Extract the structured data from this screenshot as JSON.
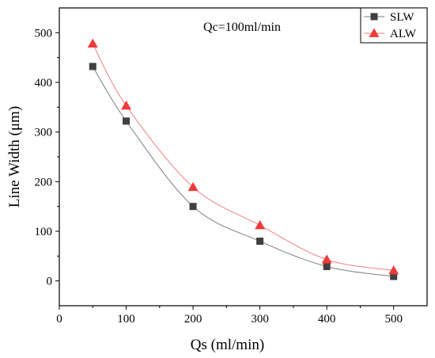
{
  "chart_data": {
    "type": "line",
    "annotation": "Qc=100ml/min",
    "xlabel": "Qs (ml/min)",
    "ylabel": "Line Width (μm)",
    "xlim": [
      0,
      550
    ],
    "ylim": [
      -50,
      550
    ],
    "xticks": [
      0,
      100,
      200,
      300,
      400,
      500
    ],
    "yticks": [
      0,
      100,
      200,
      300,
      400,
      500
    ],
    "grid": false,
    "legend_position": "top-right",
    "series": [
      {
        "name": "SLW",
        "marker": "square",
        "marker_color": "#404040",
        "line_color": "#7f7f7f",
        "x": [
          50,
          100,
          200,
          300,
          400,
          500
        ],
        "y": [
          432,
          322,
          150,
          80,
          29,
          9
        ]
      },
      {
        "name": "ALW",
        "marker": "triangle",
        "marker_color": "#ee3b3b",
        "line_color": "#f08080",
        "x": [
          50,
          100,
          200,
          300,
          400,
          500
        ],
        "y": [
          478,
          353,
          189,
          112,
          43,
          21
        ]
      }
    ]
  }
}
